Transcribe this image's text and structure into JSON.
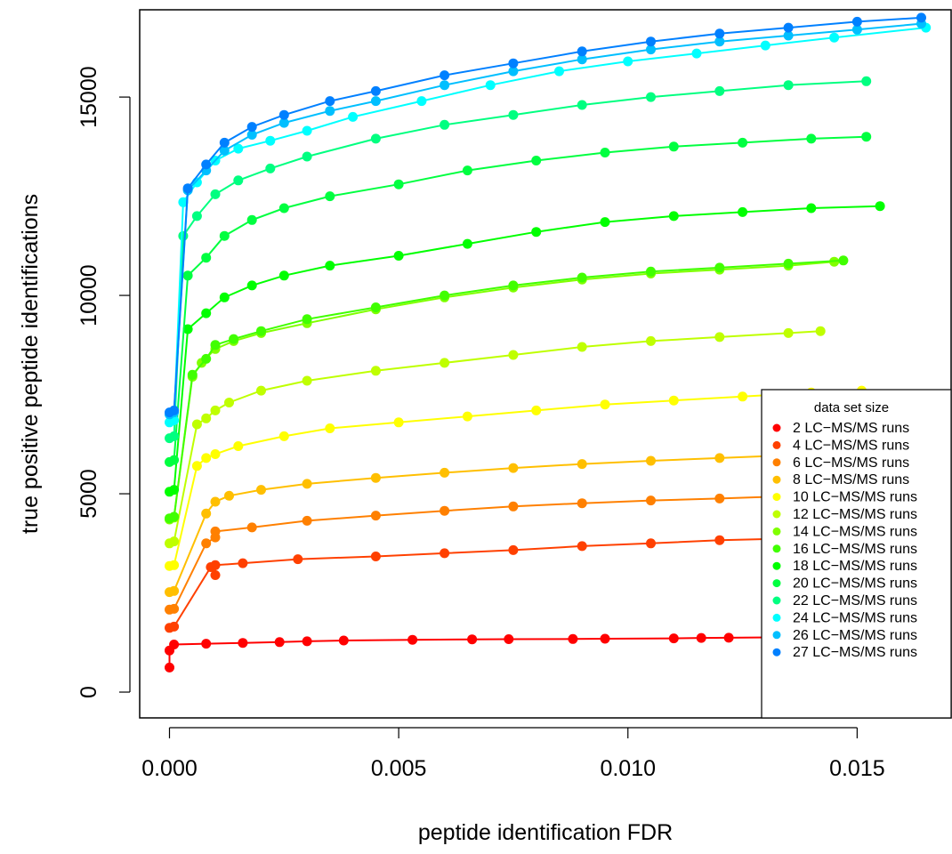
{
  "chart_data": {
    "type": "line",
    "title": "",
    "xlabel": "peptide identification FDR",
    "ylabel": "true positive peptide identifications",
    "xlim": [
      -0.00065,
      0.01705
    ],
    "ylim": [
      -650,
      17200
    ],
    "x_ticks": [
      0.0,
      0.005,
      0.01,
      0.015
    ],
    "x_tick_labels": [
      "0.000",
      "0.005",
      "0.010",
      "0.015"
    ],
    "y_ticks": [
      0,
      5000,
      10000,
      15000
    ],
    "y_tick_labels": [
      "0",
      "5000",
      "10000",
      "15000"
    ],
    "grid": false,
    "legend": {
      "position": "bottom-right",
      "title": "data set size"
    },
    "series": [
      {
        "name": "2 LC−MS/MS runs",
        "color": "#ff0000",
        "x": [
          0,
          0,
          0.0001,
          0.0008,
          0.0016,
          0.0024,
          0.003,
          0.0038,
          0.0053,
          0.0066,
          0.0074,
          0.0088,
          0.0095,
          0.011,
          0.0116,
          0.0122,
          0.0131,
          0.0142
        ],
        "y": [
          620,
          1050,
          1200,
          1220,
          1240,
          1260,
          1280,
          1300,
          1320,
          1330,
          1335,
          1340,
          1345,
          1355,
          1365,
          1370,
          1380,
          1400
        ]
      },
      {
        "name": "4 LC−MS/MS runs",
        "color": "#ff4000",
        "x": [
          0,
          0.0001,
          0.0009,
          0.001,
          0.001,
          0.0016,
          0.0028,
          0.0045,
          0.006,
          0.0075,
          0.009,
          0.0105,
          0.012,
          0.0135,
          0.015
        ],
        "y": [
          1620,
          1650,
          3150,
          2950,
          3200,
          3250,
          3350,
          3420,
          3500,
          3580,
          3680,
          3750,
          3830,
          3870,
          3920
        ]
      },
      {
        "name": "6 LC−MS/MS runs",
        "color": "#ff8000",
        "x": [
          0,
          0.0001,
          0.0008,
          0.001,
          0.001,
          0.0018,
          0.003,
          0.0045,
          0.006,
          0.0075,
          0.009,
          0.0105,
          0.012,
          0.0135,
          0.0151
        ],
        "y": [
          2080,
          2100,
          3750,
          3900,
          4050,
          4150,
          4320,
          4450,
          4570,
          4680,
          4760,
          4830,
          4880,
          4940,
          5000
        ]
      },
      {
        "name": "8 LC−MS/MS runs",
        "color": "#ffbf00",
        "x": [
          0,
          0.0001,
          0.0008,
          0.001,
          0.0013,
          0.002,
          0.003,
          0.0045,
          0.006,
          0.0075,
          0.009,
          0.0105,
          0.012,
          0.0135,
          0.0146
        ],
        "y": [
          2520,
          2550,
          4500,
          4800,
          4950,
          5100,
          5250,
          5400,
          5530,
          5650,
          5750,
          5830,
          5900,
          5970,
          6020
        ]
      },
      {
        "name": "10 LC−MS/MS runs",
        "color": "#ffff00",
        "x": [
          0,
          0.0001,
          0.0006,
          0.0008,
          0.001,
          0.0015,
          0.0025,
          0.0035,
          0.005,
          0.0065,
          0.008,
          0.0095,
          0.011,
          0.0125,
          0.014,
          0.0151
        ],
        "y": [
          3180,
          3200,
          5700,
          5900,
          6000,
          6200,
          6450,
          6650,
          6800,
          6950,
          7100,
          7250,
          7350,
          7450,
          7550,
          7600
        ]
      },
      {
        "name": "12 LC−MS/MS runs",
        "color": "#bfff00",
        "x": [
          0,
          0.0001,
          0.0006,
          0.0008,
          0.001,
          0.0013,
          0.002,
          0.003,
          0.0045,
          0.006,
          0.0075,
          0.009,
          0.0105,
          0.012,
          0.0135,
          0.0142
        ],
        "y": [
          3750,
          3800,
          6750,
          6900,
          7100,
          7300,
          7600,
          7850,
          8100,
          8300,
          8500,
          8700,
          8850,
          8950,
          9050,
          9100
        ]
      },
      {
        "name": "14 LC−MS/MS runs",
        "color": "#80ff00",
        "x": [
          0,
          0.0001,
          0.0005,
          0.0007,
          0.001,
          0.0014,
          0.002,
          0.003,
          0.0045,
          0.006,
          0.0075,
          0.009,
          0.0105,
          0.012,
          0.0135,
          0.0145
        ],
        "y": [
          4350,
          4400,
          7950,
          8300,
          8650,
          8850,
          9050,
          9300,
          9650,
          9950,
          10200,
          10400,
          10550,
          10650,
          10750,
          10850
        ]
      },
      {
        "name": "16 LC−MS/MS runs",
        "color": "#40ff00",
        "x": [
          0,
          0.0001,
          0.0005,
          0.0008,
          0.001,
          0.0014,
          0.002,
          0.003,
          0.0045,
          0.006,
          0.0075,
          0.009,
          0.0105,
          0.012,
          0.0135,
          0.0147
        ],
        "y": [
          4380,
          4420,
          8000,
          8400,
          8750,
          8900,
          9100,
          9400,
          9700,
          10000,
          10250,
          10450,
          10600,
          10700,
          10800,
          10880
        ]
      },
      {
        "name": "18 LC−MS/MS runs",
        "color": "#00ff00",
        "x": [
          0,
          0.0001,
          0.0004,
          0.0008,
          0.0012,
          0.0018,
          0.0025,
          0.0035,
          0.005,
          0.0065,
          0.008,
          0.0095,
          0.011,
          0.0125,
          0.014,
          0.0155
        ],
        "y": [
          5050,
          5100,
          9150,
          9550,
          9950,
          10250,
          10500,
          10750,
          11000,
          11300,
          11600,
          11850,
          12000,
          12100,
          12200,
          12250
        ]
      },
      {
        "name": "20 LC−MS/MS runs",
        "color": "#00ff40",
        "x": [
          0,
          0.0001,
          0.0004,
          0.0008,
          0.0012,
          0.0018,
          0.0025,
          0.0035,
          0.005,
          0.0065,
          0.008,
          0.0095,
          0.011,
          0.0125,
          0.014,
          0.0152
        ],
        "y": [
          5800,
          5850,
          10500,
          10950,
          11500,
          11900,
          12200,
          12500,
          12800,
          13150,
          13400,
          13600,
          13750,
          13850,
          13950,
          14000
        ]
      },
      {
        "name": "22 LC−MS/MS runs",
        "color": "#00ff80",
        "x": [
          0,
          0.0001,
          0.0003,
          0.0006,
          0.001,
          0.0015,
          0.0022,
          0.003,
          0.0045,
          0.006,
          0.0075,
          0.009,
          0.0105,
          0.012,
          0.0135,
          0.0152
        ],
        "y": [
          6400,
          6450,
          11500,
          12000,
          12550,
          12900,
          13200,
          13500,
          13950,
          14300,
          14550,
          14800,
          15000,
          15150,
          15300,
          15400
        ]
      },
      {
        "name": "24 LC−MS/MS runs",
        "color": "#00ffff",
        "x": [
          0,
          0.0001,
          0.0003,
          0.0006,
          0.001,
          0.0015,
          0.0022,
          0.003,
          0.004,
          0.0055,
          0.007,
          0.0085,
          0.01,
          0.0115,
          0.013,
          0.0145,
          0.0165
        ],
        "y": [
          6800,
          6850,
          12350,
          12850,
          13400,
          13700,
          13900,
          14150,
          14500,
          14900,
          15300,
          15650,
          15900,
          16100,
          16300,
          16500,
          16750
        ]
      },
      {
        "name": "26 LC−MS/MS runs",
        "color": "#00bfff",
        "x": [
          0,
          0.0001,
          0.0004,
          0.0008,
          0.0012,
          0.0018,
          0.0025,
          0.0035,
          0.0045,
          0.006,
          0.0075,
          0.009,
          0.0105,
          0.012,
          0.0135,
          0.015,
          0.0164
        ],
        "y": [
          7000,
          7050,
          12650,
          13150,
          13650,
          14050,
          14350,
          14650,
          14900,
          15300,
          15650,
          15950,
          16200,
          16400,
          16550,
          16700,
          16850
        ]
      },
      {
        "name": "27 LC−MS/MS runs",
        "color": "#0080ff",
        "x": [
          0,
          0.0001,
          0.0004,
          0.0008,
          0.0012,
          0.0018,
          0.0025,
          0.0035,
          0.0045,
          0.006,
          0.0075,
          0.009,
          0.0105,
          0.012,
          0.0135,
          0.015,
          0.0164
        ],
        "y": [
          7050,
          7100,
          12700,
          13300,
          13850,
          14250,
          14550,
          14900,
          15150,
          15550,
          15850,
          16150,
          16400,
          16600,
          16750,
          16900,
          17000
        ]
      }
    ]
  }
}
